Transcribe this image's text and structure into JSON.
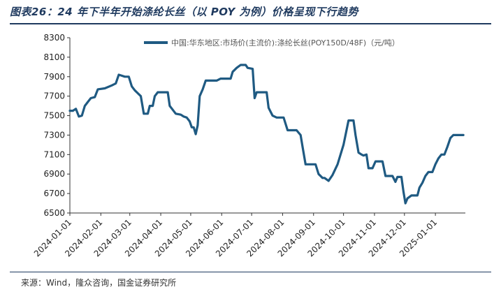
{
  "header": {
    "title": "图表26：24 年下半年开始涤纶长丝（以 POY 为例）价格呈现下行趋势"
  },
  "footer": {
    "source": "来源：Wind，隆众咨询，国金证券研究所"
  },
  "colors": {
    "series": "#1f5a82",
    "rule": "#1f3a5f"
  },
  "chart_data": {
    "type": "line",
    "title": "",
    "xlabel": "",
    "ylabel": "",
    "ylim": [
      6500,
      8300
    ],
    "yticks": [
      6500,
      6700,
      6900,
      7100,
      7300,
      7500,
      7700,
      7900,
      8100,
      8300
    ],
    "xticks": [
      "2024-01-01",
      "2024-02-01",
      "2024-03-01",
      "2024-04-01",
      "2024-05-01",
      "2024-06-01",
      "2024-07-01",
      "2024-08-01",
      "2024-09-01",
      "2024-10-01",
      "2024-11-01",
      "2024-12-01",
      "2025-01-01"
    ],
    "xrange": [
      "2024-01-01",
      "2025-01-31"
    ],
    "grid": false,
    "legend_position": "top",
    "series": [
      {
        "name": "中国:华东地区:市场价(主流价):涤纶长丝(POY150D/48F)（元/吨）",
        "points": [
          [
            "2024-01-01",
            7550
          ],
          [
            "2024-01-04",
            7550
          ],
          [
            "2024-01-07",
            7570
          ],
          [
            "2024-01-10",
            7490
          ],
          [
            "2024-01-13",
            7500
          ],
          [
            "2024-01-16",
            7600
          ],
          [
            "2024-01-19",
            7640
          ],
          [
            "2024-01-22",
            7680
          ],
          [
            "2024-01-26",
            7690
          ],
          [
            "2024-01-29",
            7770
          ],
          [
            "2024-02-05",
            7780
          ],
          [
            "2024-02-12",
            7810
          ],
          [
            "2024-02-16",
            7830
          ],
          [
            "2024-02-19",
            7920
          ],
          [
            "2024-02-22",
            7910
          ],
          [
            "2024-02-25",
            7900
          ],
          [
            "2024-02-29",
            7900
          ],
          [
            "2024-03-03",
            7800
          ],
          [
            "2024-03-06",
            7760
          ],
          [
            "2024-03-09",
            7730
          ],
          [
            "2024-03-12",
            7700
          ],
          [
            "2024-03-15",
            7520
          ],
          [
            "2024-03-19",
            7520
          ],
          [
            "2024-03-21",
            7600
          ],
          [
            "2024-03-24",
            7600
          ],
          [
            "2024-03-26",
            7700
          ],
          [
            "2024-03-29",
            7740
          ],
          [
            "2024-04-08",
            7740
          ],
          [
            "2024-04-10",
            7600
          ],
          [
            "2024-04-13",
            7560
          ],
          [
            "2024-04-16",
            7520
          ],
          [
            "2024-04-21",
            7510
          ],
          [
            "2024-04-24",
            7490
          ],
          [
            "2024-04-27",
            7480
          ],
          [
            "2024-04-30",
            7440
          ],
          [
            "2024-05-02",
            7380
          ],
          [
            "2024-05-04",
            7380
          ],
          [
            "2024-05-06",
            7310
          ],
          [
            "2024-05-08",
            7400
          ],
          [
            "2024-05-10",
            7700
          ],
          [
            "2024-05-13",
            7770
          ],
          [
            "2024-05-16",
            7860
          ],
          [
            "2024-05-27",
            7860
          ],
          [
            "2024-05-31",
            7880
          ],
          [
            "2024-06-10",
            7880
          ],
          [
            "2024-06-12",
            7950
          ],
          [
            "2024-06-16",
            7990
          ],
          [
            "2024-06-20",
            8020
          ],
          [
            "2024-06-25",
            8020
          ],
          [
            "2024-06-27",
            7990
          ],
          [
            "2024-07-02",
            7980
          ],
          [
            "2024-07-04",
            7680
          ],
          [
            "2024-07-06",
            7740
          ],
          [
            "2024-07-16",
            7740
          ],
          [
            "2024-07-18",
            7580
          ],
          [
            "2024-07-22",
            7500
          ],
          [
            "2024-07-26",
            7480
          ],
          [
            "2024-08-02",
            7480
          ],
          [
            "2024-08-06",
            7350
          ],
          [
            "2024-08-15",
            7350
          ],
          [
            "2024-08-19",
            7300
          ],
          [
            "2024-08-21",
            7180
          ],
          [
            "2024-08-24",
            7000
          ],
          [
            "2024-09-03",
            7000
          ],
          [
            "2024-09-06",
            6900
          ],
          [
            "2024-09-10",
            6860
          ],
          [
            "2024-09-12",
            6860
          ],
          [
            "2024-09-16",
            6830
          ],
          [
            "2024-09-20",
            6890
          ],
          [
            "2024-09-25",
            7000
          ],
          [
            "2024-10-01",
            7200
          ],
          [
            "2024-10-06",
            7450
          ],
          [
            "2024-10-11",
            7450
          ],
          [
            "2024-10-13",
            7300
          ],
          [
            "2024-10-16",
            7120
          ],
          [
            "2024-10-19",
            7100
          ],
          [
            "2024-10-21",
            7090
          ],
          [
            "2024-10-24",
            7100
          ],
          [
            "2024-10-26",
            6960
          ],
          [
            "2024-10-30",
            6960
          ],
          [
            "2024-11-02",
            7030
          ],
          [
            "2024-11-09",
            7030
          ],
          [
            "2024-11-12",
            6880
          ],
          [
            "2024-11-19",
            6880
          ],
          [
            "2024-11-22",
            6820
          ],
          [
            "2024-11-24",
            6870
          ],
          [
            "2024-11-28",
            6870
          ],
          [
            "2024-11-30",
            6720
          ],
          [
            "2024-12-02",
            6600
          ],
          [
            "2024-12-04",
            6650
          ],
          [
            "2024-12-08",
            6680
          ],
          [
            "2024-12-14",
            6680
          ],
          [
            "2024-12-16",
            6760
          ],
          [
            "2024-12-19",
            6810
          ],
          [
            "2024-12-22",
            6880
          ],
          [
            "2024-12-25",
            6920
          ],
          [
            "2024-12-29",
            6920
          ],
          [
            "2025-01-01",
            7000
          ],
          [
            "2025-01-04",
            7060
          ],
          [
            "2025-01-07",
            7100
          ],
          [
            "2025-01-10",
            7100
          ],
          [
            "2025-01-13",
            7180
          ],
          [
            "2025-01-16",
            7270
          ],
          [
            "2025-01-19",
            7300
          ],
          [
            "2025-01-29",
            7300
          ]
        ]
      }
    ]
  }
}
